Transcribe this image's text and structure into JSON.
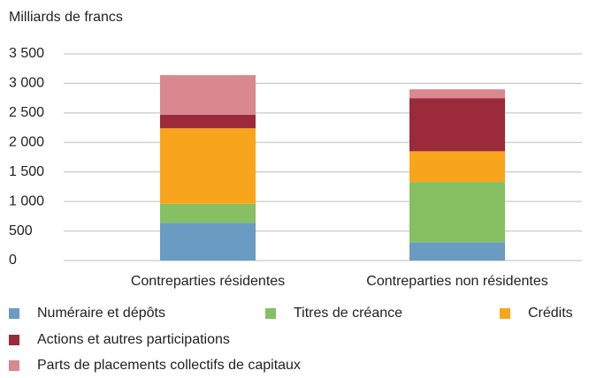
{
  "chart_data": {
    "type": "stacked_bar",
    "subtitle": "Milliards de francs",
    "categories": [
      "Contreparties résidentes",
      "Contreparties non résidentes"
    ],
    "series": [
      {
        "name": "Numéraire et dépôts",
        "color": "#6a9bc3",
        "values": [
          640,
          310
        ]
      },
      {
        "name": "Titres de créance",
        "color": "#86c062",
        "values": [
          320,
          1020
        ]
      },
      {
        "name": "Crédits",
        "color": "#f8a51b",
        "values": [
          1280,
          520
        ]
      },
      {
        "name": "Actions et autres participations",
        "color": "#9b2a3a",
        "values": [
          230,
          900
        ]
      },
      {
        "name": "Parts de placements collectifs de capitaux",
        "color": "#d9888f",
        "values": [
          670,
          150
        ]
      }
    ],
    "ylim": [
      0,
      3500
    ],
    "yticks": [
      0,
      500,
      {
        "value": 1000,
        "label": "1 000"
      },
      {
        "value": 1500,
        "label": "1 500"
      },
      {
        "value": 2000,
        "label": "2 000"
      },
      {
        "value": 2500,
        "label": "2 500"
      },
      {
        "value": 3000,
        "label": "3 000"
      },
      {
        "value": 3500,
        "label": "3 500"
      }
    ],
    "grid": true,
    "legend": "bottom"
  }
}
